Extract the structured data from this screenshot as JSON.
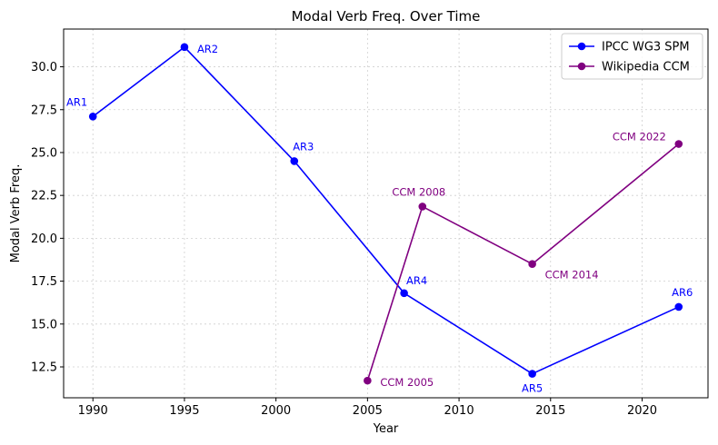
{
  "chart_data": {
    "type": "line",
    "title": "Modal Verb Freq. Over Time",
    "xlabel": "Year",
    "ylabel": "Modal Verb Freq.",
    "xlim": [
      1988.4,
      2023.6
    ],
    "ylim": [
      10.7,
      32.2
    ],
    "xticks": [
      1990,
      1995,
      2000,
      2005,
      2010,
      2015,
      2020
    ],
    "yticks": [
      12.5,
      15.0,
      17.5,
      20.0,
      22.5,
      25.0,
      27.5,
      30.0
    ],
    "ytick_labels": [
      "12.5",
      "15.0",
      "17.5",
      "20.0",
      "22.5",
      "25.0",
      "27.5",
      "30.0"
    ],
    "grid": true,
    "legend_position": "upper right",
    "series": [
      {
        "name": "IPCC WG3 SPM",
        "color": "#0000ff",
        "x": [
          1990,
          1995,
          2001,
          2007,
          2014,
          2022
        ],
        "y": [
          27.1,
          31.15,
          24.5,
          16.8,
          12.1,
          16.0
        ],
        "labels": [
          "AR1",
          "AR2",
          "AR3",
          "AR4",
          "AR5",
          "AR6"
        ]
      },
      {
        "name": "Wikipedia CCM",
        "color": "#800080",
        "x": [
          2005,
          2008,
          2014,
          2022
        ],
        "y": [
          11.7,
          21.85,
          18.5,
          25.5
        ],
        "labels": [
          "CCM 2005",
          "CCM 2008",
          "CCM 2014",
          "CCM 2022"
        ]
      }
    ]
  }
}
